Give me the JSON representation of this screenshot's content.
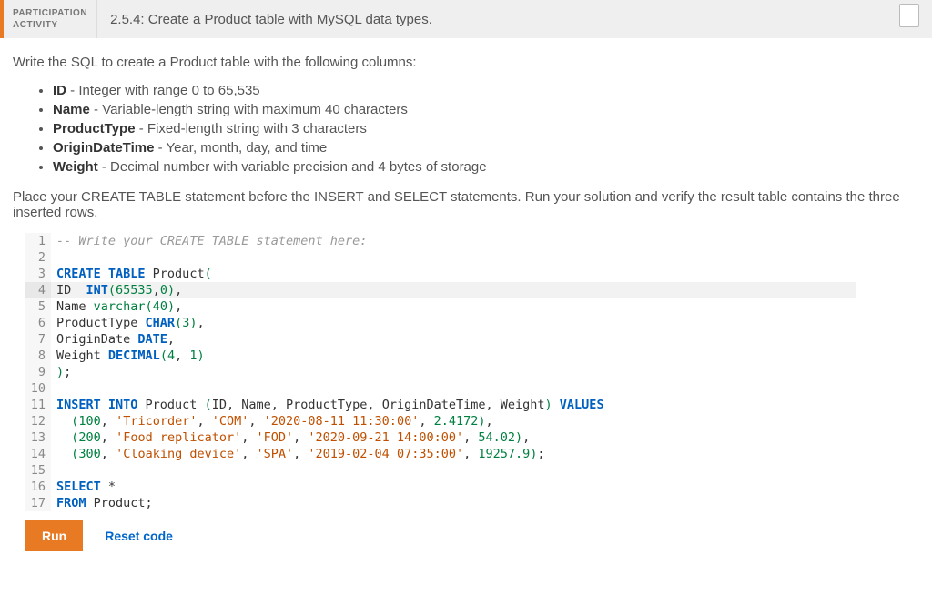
{
  "header": {
    "badge_line1": "PARTICIPATION",
    "badge_line2": "ACTIVITY",
    "title": "2.5.4: Create a Product table with MySQL data types."
  },
  "instructions": {
    "intro": "Write the SQL to create a Product table with the following columns:",
    "columns": [
      {
        "name": "ID",
        "desc": " - Integer with range 0 to 65,535"
      },
      {
        "name": "Name",
        "desc": " - Variable-length string with maximum 40 characters"
      },
      {
        "name": "ProductType",
        "desc": " - Fixed-length string with 3 characters"
      },
      {
        "name": "OriginDateTime",
        "desc": " - Year, month, day, and time"
      },
      {
        "name": "Weight",
        "desc": " - Decimal number with variable precision and 4 bytes of storage"
      }
    ],
    "post": "Place your CREATE TABLE statement before the INSERT and SELECT statements. Run your solution and verify the result table contains the three inserted rows."
  },
  "editor": {
    "highlight_line": 4,
    "lines": [
      {
        "n": 1,
        "tokens": [
          {
            "t": "-- Write your CREATE TABLE statement here:",
            "c": "tok-comment"
          }
        ]
      },
      {
        "n": 2,
        "tokens": []
      },
      {
        "n": 3,
        "tokens": [
          {
            "t": "CREATE TABLE",
            "c": "tok-kw"
          },
          {
            "t": " Product",
            "c": "tok-ident"
          },
          {
            "t": "(",
            "c": "tok-type"
          }
        ]
      },
      {
        "n": 4,
        "tokens": [
          {
            "t": "ID  ",
            "c": "tok-ident"
          },
          {
            "t": "INT",
            "c": "tok-kw"
          },
          {
            "t": "(",
            "c": "tok-type"
          },
          {
            "t": "65535",
            "c": "tok-num"
          },
          {
            "t": ",",
            "c": "tok-punc"
          },
          {
            "t": "0",
            "c": "tok-num"
          },
          {
            "t": ")",
            "c": "tok-type"
          },
          {
            "t": ",",
            "c": "tok-punc"
          }
        ]
      },
      {
        "n": 5,
        "tokens": [
          {
            "t": "Name ",
            "c": "tok-ident"
          },
          {
            "t": "varchar",
            "c": "tok-type"
          },
          {
            "t": "(",
            "c": "tok-type"
          },
          {
            "t": "40",
            "c": "tok-num"
          },
          {
            "t": ")",
            "c": "tok-type"
          },
          {
            "t": ",",
            "c": "tok-punc"
          }
        ]
      },
      {
        "n": 6,
        "tokens": [
          {
            "t": "ProductType ",
            "c": "tok-ident"
          },
          {
            "t": "CHAR",
            "c": "tok-kw"
          },
          {
            "t": "(",
            "c": "tok-type"
          },
          {
            "t": "3",
            "c": "tok-num"
          },
          {
            "t": ")",
            "c": "tok-type"
          },
          {
            "t": ",",
            "c": "tok-punc"
          }
        ]
      },
      {
        "n": 7,
        "tokens": [
          {
            "t": "OriginDate ",
            "c": "tok-ident"
          },
          {
            "t": "DATE",
            "c": "tok-kw"
          },
          {
            "t": ",",
            "c": "tok-punc"
          }
        ]
      },
      {
        "n": 8,
        "tokens": [
          {
            "t": "Weight ",
            "c": "tok-ident"
          },
          {
            "t": "DECIMAL",
            "c": "tok-kw"
          },
          {
            "t": "(",
            "c": "tok-type"
          },
          {
            "t": "4",
            "c": "tok-num"
          },
          {
            "t": ", ",
            "c": "tok-punc"
          },
          {
            "t": "1",
            "c": "tok-num"
          },
          {
            "t": ")",
            "c": "tok-type"
          }
        ]
      },
      {
        "n": 9,
        "tokens": [
          {
            "t": ")",
            "c": "tok-type"
          },
          {
            "t": ";",
            "c": "tok-punc"
          }
        ]
      },
      {
        "n": 10,
        "tokens": []
      },
      {
        "n": 11,
        "tokens": [
          {
            "t": "INSERT INTO",
            "c": "tok-kw"
          },
          {
            "t": " Product ",
            "c": "tok-ident"
          },
          {
            "t": "(",
            "c": "tok-type"
          },
          {
            "t": "ID",
            "c": "tok-ident"
          },
          {
            "t": ", ",
            "c": "tok-punc"
          },
          {
            "t": "Name",
            "c": "tok-ident"
          },
          {
            "t": ", ",
            "c": "tok-punc"
          },
          {
            "t": "ProductType",
            "c": "tok-ident"
          },
          {
            "t": ", ",
            "c": "tok-punc"
          },
          {
            "t": "OriginDateTime",
            "c": "tok-ident"
          },
          {
            "t": ", ",
            "c": "tok-punc"
          },
          {
            "t": "Weight",
            "c": "tok-ident"
          },
          {
            "t": ")",
            "c": "tok-type"
          },
          {
            "t": " VALUES",
            "c": "tok-kw"
          }
        ]
      },
      {
        "n": 12,
        "tokens": [
          {
            "t": "  ",
            "c": "tok-punc"
          },
          {
            "t": "(",
            "c": "tok-type"
          },
          {
            "t": "100",
            "c": "tok-num"
          },
          {
            "t": ", ",
            "c": "tok-punc"
          },
          {
            "t": "'Tricorder'",
            "c": "tok-str"
          },
          {
            "t": ", ",
            "c": "tok-punc"
          },
          {
            "t": "'COM'",
            "c": "tok-str"
          },
          {
            "t": ", ",
            "c": "tok-punc"
          },
          {
            "t": "'2020-08-11 11:30:00'",
            "c": "tok-str"
          },
          {
            "t": ", ",
            "c": "tok-punc"
          },
          {
            "t": "2.4172",
            "c": "tok-num"
          },
          {
            "t": ")",
            "c": "tok-type"
          },
          {
            "t": ",",
            "c": "tok-punc"
          }
        ]
      },
      {
        "n": 13,
        "tokens": [
          {
            "t": "  ",
            "c": "tok-punc"
          },
          {
            "t": "(",
            "c": "tok-type"
          },
          {
            "t": "200",
            "c": "tok-num"
          },
          {
            "t": ", ",
            "c": "tok-punc"
          },
          {
            "t": "'Food replicator'",
            "c": "tok-str"
          },
          {
            "t": ", ",
            "c": "tok-punc"
          },
          {
            "t": "'FOD'",
            "c": "tok-str"
          },
          {
            "t": ", ",
            "c": "tok-punc"
          },
          {
            "t": "'2020-09-21 14:00:00'",
            "c": "tok-str"
          },
          {
            "t": ", ",
            "c": "tok-punc"
          },
          {
            "t": "54.02",
            "c": "tok-num"
          },
          {
            "t": ")",
            "c": "tok-type"
          },
          {
            "t": ",",
            "c": "tok-punc"
          }
        ]
      },
      {
        "n": 14,
        "tokens": [
          {
            "t": "  ",
            "c": "tok-punc"
          },
          {
            "t": "(",
            "c": "tok-type"
          },
          {
            "t": "300",
            "c": "tok-num"
          },
          {
            "t": ", ",
            "c": "tok-punc"
          },
          {
            "t": "'Cloaking device'",
            "c": "tok-str"
          },
          {
            "t": ", ",
            "c": "tok-punc"
          },
          {
            "t": "'SPA'",
            "c": "tok-str"
          },
          {
            "t": ", ",
            "c": "tok-punc"
          },
          {
            "t": "'2019-02-04 07:35:00'",
            "c": "tok-str"
          },
          {
            "t": ", ",
            "c": "tok-punc"
          },
          {
            "t": "19257.9",
            "c": "tok-num"
          },
          {
            "t": ")",
            "c": "tok-type"
          },
          {
            "t": ";",
            "c": "tok-punc"
          }
        ]
      },
      {
        "n": 15,
        "tokens": []
      },
      {
        "n": 16,
        "tokens": [
          {
            "t": "SELECT",
            "c": "tok-kw"
          },
          {
            "t": " *",
            "c": "tok-punc"
          }
        ]
      },
      {
        "n": 17,
        "tokens": [
          {
            "t": "FROM",
            "c": "tok-kw"
          },
          {
            "t": " Product",
            "c": "tok-ident"
          },
          {
            "t": ";",
            "c": "tok-punc"
          }
        ]
      }
    ]
  },
  "actions": {
    "run": "Run",
    "reset": "Reset code"
  }
}
